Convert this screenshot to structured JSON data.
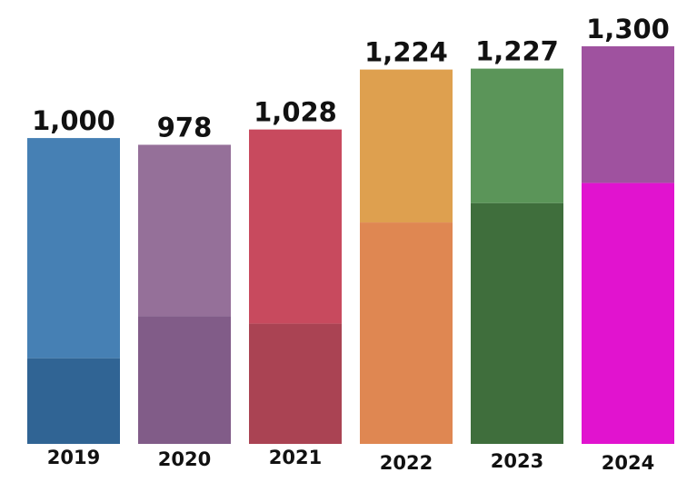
{
  "chart_data": {
    "type": "bar",
    "title": "",
    "xlabel": "",
    "ylabel": "",
    "ylim": [
      0,
      1300
    ],
    "grid": false,
    "legend": "none",
    "categories": [
      "2019",
      "2020",
      "2021",
      "2022",
      "2023",
      "2024"
    ],
    "values": [
      1000,
      978,
      1028,
      1224,
      1227,
      1300
    ],
    "value_labels": [
      "1,000",
      "978",
      "1,028",
      "1,224",
      "1,227",
      "1,300"
    ],
    "lower_segment_values": [
      280,
      418,
      393,
      724,
      787,
      853
    ],
    "colors": {
      "upper": [
        "#4680b4",
        "#957099",
        "#c84a5e",
        "#dea04f",
        "#5b9559",
        "#9f529f"
      ],
      "lower": [
        "#306494",
        "#815c88",
        "#aa4353",
        "#df8752",
        "#3f6e3c",
        "#e113cf"
      ]
    }
  }
}
